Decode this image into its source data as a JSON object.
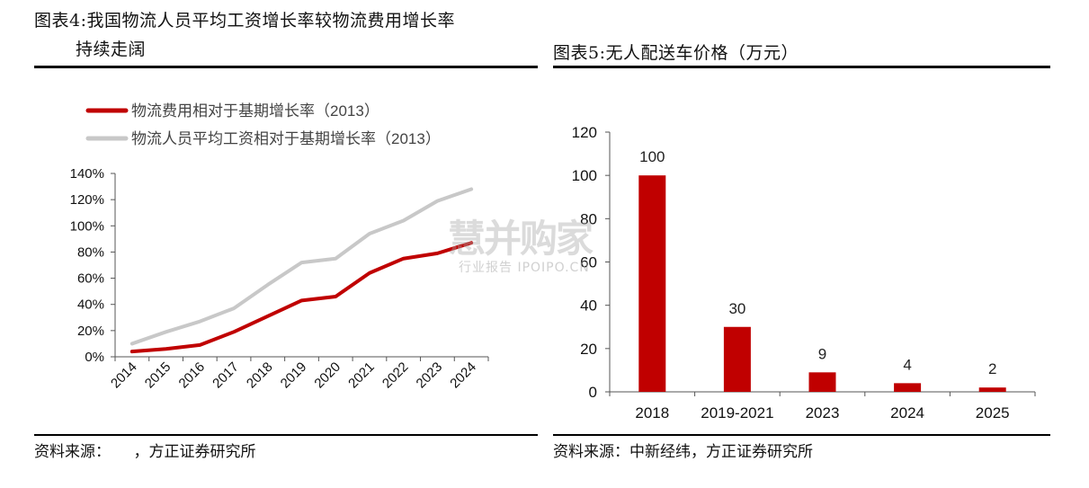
{
  "left_panel": {
    "title_line1": "图表4:我国物流人员平均工资增长率较物流费用增长率",
    "title_line2": "持续走阔",
    "source": "资料来源：　　，方正证券研究所"
  },
  "right_panel": {
    "title": "图表5:无人配送车价格（万元）",
    "source": "资料来源：中新经纬，方正证券研究所"
  },
  "watermark": {
    "main": "慧并购家",
    "sub": "行业报告 IPOIPO.CN"
  },
  "chart_data": [
    {
      "type": "line",
      "x": [
        "2014",
        "2015",
        "2016",
        "2017",
        "2018",
        "2019",
        "2020",
        "2021",
        "2022",
        "2023",
        "2024"
      ],
      "y_ticks": [
        "0%",
        "20%",
        "40%",
        "60%",
        "80%",
        "100%",
        "120%",
        "140%"
      ],
      "ylim": [
        0,
        140
      ],
      "grid": false,
      "legend_position": "top-left",
      "series": [
        {
          "name": "物流费用相对于基期增长率（2013）",
          "color": "#c00000",
          "values": [
            4,
            6,
            9,
            19,
            31,
            43,
            46,
            64,
            75,
            79,
            87
          ]
        },
        {
          "name": "物流人员平均工资相对于基期增长率（2013）",
          "color": "#c8c8c8",
          "values": [
            10,
            19,
            27,
            37,
            55,
            72,
            75,
            94,
            104,
            119,
            128
          ]
        }
      ]
    },
    {
      "type": "bar",
      "categories": [
        "2018",
        "2019-2021",
        "2023",
        "2024",
        "2025"
      ],
      "values": [
        100,
        30,
        9,
        4,
        2
      ],
      "data_labels": [
        "100",
        "30",
        "9",
        "4",
        "2"
      ],
      "y_ticks": [
        "0",
        "20",
        "40",
        "60",
        "80",
        "100",
        "120"
      ],
      "ylim": [
        0,
        120
      ],
      "grid": false,
      "color": "#c00000"
    }
  ]
}
